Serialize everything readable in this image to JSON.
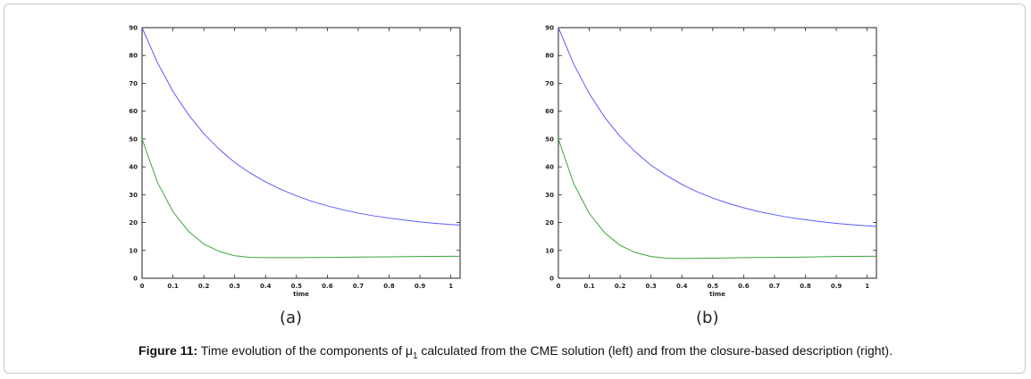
{
  "caption": {
    "label": "Figure 11:",
    "text_before": " Time evolution of the components of μ",
    "subscript": "1",
    "text_after": " calculated from the CME solution (left) and from the closure-based description (right)."
  },
  "chart_data": [
    {
      "type": "line",
      "panel_label": "(a)",
      "title": "",
      "xlabel": "time",
      "ylabel": "",
      "xlim": [
        0,
        1.03
      ],
      "ylim": [
        0,
        90
      ],
      "xticks": [
        "0",
        "0.1",
        "0.2",
        "0.3",
        "0.4",
        "0.5",
        "0.6",
        "0.7",
        "0.8",
        "0.9",
        "1"
      ],
      "yticks": [
        "0",
        "10",
        "20",
        "30",
        "40",
        "50",
        "60",
        "70",
        "80",
        "90"
      ],
      "grid": false,
      "series": [
        {
          "color": "#5a5aff",
          "x": [
            0,
            0.05,
            0.1,
            0.15,
            0.2,
            0.25,
            0.3,
            0.35,
            0.4,
            0.45,
            0.5,
            0.55,
            0.6,
            0.65,
            0.7,
            0.75,
            0.8,
            0.85,
            0.9,
            0.95,
            1.0,
            1.03
          ],
          "y": [
            90,
            77.4,
            67.1,
            58.8,
            51.9,
            46.3,
            41.6,
            37.8,
            34.6,
            31.9,
            29.6,
            27.6,
            26.0,
            24.6,
            23.4,
            22.4,
            21.6,
            20.9,
            20.2,
            19.7,
            19.3,
            19.1
          ]
        },
        {
          "color": "#3aa63a",
          "x": [
            0,
            0.05,
            0.1,
            0.15,
            0.2,
            0.25,
            0.3,
            0.35,
            0.4,
            0.5,
            0.6,
            0.7,
            0.8,
            0.9,
            1.0,
            1.03
          ],
          "y": [
            50,
            34.4,
            23.9,
            16.9,
            12.3,
            9.6,
            8.1,
            7.5,
            7.4,
            7.4,
            7.5,
            7.6,
            7.7,
            7.8,
            7.9,
            7.9
          ]
        }
      ]
    },
    {
      "type": "line",
      "panel_label": "(b)",
      "title": "",
      "xlabel": "time",
      "ylabel": "",
      "xlim": [
        0,
        1.03
      ],
      "ylim": [
        0,
        90
      ],
      "xticks": [
        "0",
        "0.1",
        "0.2",
        "0.3",
        "0.4",
        "0.5",
        "0.6",
        "0.7",
        "0.8",
        "0.9",
        "1"
      ],
      "yticks": [
        "0",
        "10",
        "20",
        "30",
        "40",
        "50",
        "60",
        "70",
        "80",
        "90"
      ],
      "grid": false,
      "series": [
        {
          "color": "#5a5aff",
          "x": [
            0,
            0.05,
            0.1,
            0.15,
            0.2,
            0.25,
            0.3,
            0.35,
            0.4,
            0.45,
            0.5,
            0.55,
            0.6,
            0.65,
            0.7,
            0.75,
            0.8,
            0.85,
            0.9,
            0.95,
            1.0,
            1.03
          ],
          "y": [
            90,
            76.8,
            66.3,
            57.8,
            50.9,
            45.3,
            40.6,
            36.9,
            33.7,
            31.0,
            28.8,
            26.9,
            25.3,
            23.9,
            22.8,
            21.8,
            21.0,
            20.3,
            19.7,
            19.2,
            18.8,
            18.6
          ]
        },
        {
          "color": "#3aa63a",
          "x": [
            0,
            0.05,
            0.1,
            0.15,
            0.2,
            0.25,
            0.3,
            0.35,
            0.4,
            0.5,
            0.6,
            0.7,
            0.8,
            0.9,
            1.0,
            1.03
          ],
          "y": [
            50,
            33.9,
            23.3,
            16.3,
            11.8,
            9.2,
            7.8,
            7.2,
            7.1,
            7.2,
            7.4,
            7.5,
            7.6,
            7.8,
            7.9,
            7.9
          ]
        }
      ]
    }
  ]
}
